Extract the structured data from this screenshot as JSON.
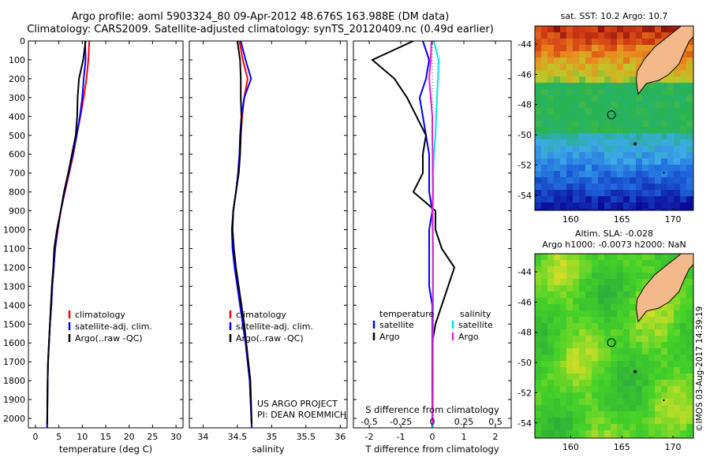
{
  "header": {
    "line1": "Argo profile: aoml 5903324_80 09-Apr-2012 48.676S 163.988E (DM data)",
    "line2": "Climatology: CARS2009. Satellite-adjusted climatology: synTS_20120409.nc (0.49d earlier)"
  },
  "colors": {
    "climatology": "#ff0000",
    "satellite": "#0000ff",
    "argo": "#000000",
    "salinity_satellite": "#00e5ee",
    "salinity_argo": "#e020d0"
  },
  "chart_data": [
    {
      "type": "line",
      "name": "temperature-profile",
      "xlabel": "temperature (deg C)",
      "xlim": [
        -1.5,
        31.5
      ],
      "xticks": [
        0,
        5,
        10,
        15,
        20,
        25,
        30
      ],
      "ylim": [
        0,
        2050
      ],
      "yticks": [
        0,
        100,
        200,
        300,
        400,
        500,
        600,
        700,
        800,
        900,
        1000,
        1100,
        1200,
        1300,
        1400,
        1500,
        1600,
        1700,
        1800,
        1900,
        2000
      ],
      "legend": {
        "position": "lower-center",
        "entries": [
          "climatology",
          "satellite-adj. clim.",
          "Argo(..raw -QC)"
        ]
      },
      "series": [
        {
          "name": "climatology",
          "color_key": "climatology",
          "x": [
            11.5,
            11.3,
            10.9,
            10.3,
            9.6,
            8.8,
            8.1,
            7.2,
            6.3,
            5.4,
            4.8,
            4.2,
            3.9,
            3.6,
            3.4,
            3.1,
            2.9,
            2.7,
            2.6,
            2.5
          ],
          "y": [
            0,
            100,
            200,
            300,
            400,
            500,
            600,
            700,
            800,
            900,
            1000,
            1100,
            1200,
            1300,
            1400,
            1500,
            1600,
            1700,
            1800,
            2050
          ]
        },
        {
          "name": "satellite-adj. clim.",
          "color_key": "satellite",
          "x": [
            10.6,
            10.7,
            10.3,
            10.0,
            9.5,
            8.8,
            8.0,
            7.1,
            6.2,
            5.4,
            4.7,
            4.2,
            3.9,
            3.6,
            3.4,
            3.1,
            2.9,
            2.7,
            2.6,
            2.5
          ],
          "y": [
            0,
            100,
            200,
            300,
            400,
            500,
            600,
            700,
            800,
            900,
            1000,
            1100,
            1200,
            1300,
            1400,
            1500,
            1600,
            1700,
            1800,
            2050
          ]
        },
        {
          "name": "Argo(..raw -QC)",
          "color_key": "argo",
          "x": [
            10.7,
            10.2,
            9.3,
            9.0,
            8.9,
            8.6,
            7.8,
            7.0,
            6.1,
            5.4,
            4.6,
            4.0,
            3.8,
            3.5,
            3.3,
            3.1,
            2.9,
            2.7,
            2.6,
            2.5
          ],
          "y": [
            0,
            100,
            200,
            300,
            400,
            500,
            600,
            700,
            800,
            900,
            1000,
            1100,
            1200,
            1300,
            1400,
            1500,
            1600,
            1700,
            1800,
            2030
          ]
        }
      ]
    },
    {
      "type": "line",
      "name": "salinity-profile",
      "xlabel": "salinity",
      "xlim": [
        33.8,
        36.1
      ],
      "xticks": [
        34,
        34.5,
        35,
        35.5,
        36
      ],
      "ylim": [
        0,
        2050
      ],
      "legend": {
        "position": "lower-center",
        "entries": [
          "climatology",
          "satellite-adj. clim.",
          "Argo(..raw -QC)"
        ]
      },
      "series": [
        {
          "name": "climatology",
          "color_key": "climatology",
          "x": [
            34.53,
            34.58,
            34.65,
            34.6,
            34.57,
            34.55,
            34.54,
            34.52,
            34.48,
            34.44,
            34.42,
            34.43,
            34.46,
            34.5,
            34.54,
            34.58,
            34.62,
            34.65,
            34.68,
            34.71
          ],
          "y": [
            0,
            100,
            200,
            300,
            400,
            500,
            600,
            700,
            800,
            900,
            1000,
            1100,
            1200,
            1300,
            1400,
            1500,
            1600,
            1700,
            1800,
            2050
          ]
        },
        {
          "name": "satellite-adj. clim.",
          "color_key": "satellite",
          "x": [
            34.55,
            34.62,
            34.7,
            34.6,
            34.56,
            34.54,
            34.53,
            34.51,
            34.48,
            34.44,
            34.42,
            34.43,
            34.46,
            34.5,
            34.54,
            34.58,
            34.62,
            34.65,
            34.68,
            34.71
          ],
          "y": [
            0,
            100,
            200,
            300,
            400,
            500,
            600,
            700,
            800,
            900,
            1000,
            1100,
            1200,
            1300,
            1400,
            1500,
            1600,
            1700,
            1800,
            2050
          ]
        },
        {
          "name": "Argo(..raw -QC)",
          "color_key": "argo",
          "x": [
            34.5,
            34.54,
            34.55,
            34.55,
            34.56,
            34.55,
            34.54,
            34.52,
            34.48,
            34.44,
            34.43,
            34.45,
            34.48,
            34.52,
            34.56,
            34.6,
            34.63,
            34.66,
            34.69,
            34.71
          ],
          "y": [
            0,
            100,
            200,
            300,
            400,
            500,
            600,
            700,
            800,
            900,
            1000,
            1100,
            1200,
            1300,
            1400,
            1500,
            1600,
            1700,
            1800,
            2030
          ]
        }
      ]
    },
    {
      "type": "line",
      "name": "difference-profile",
      "xlabel": "T difference from climatology",
      "xlabel_top": "S difference from climatology",
      "xlim": [
        -2.5,
        2.5
      ],
      "xticks": [
        -2,
        -1,
        0,
        1,
        2
      ],
      "xticks_top": [
        -0.5,
        -0.25,
        0,
        0.25,
        0.5
      ],
      "xticks_top_labels": [
        "-0.5",
        "-0.25",
        "0",
        "0.25",
        "0.5"
      ],
      "ylim": [
        0,
        2050
      ],
      "legend": {
        "position": "lower-center",
        "headers": [
          "temperature",
          "salinity"
        ],
        "entries": [
          "satellite",
          "Argo",
          "satellite",
          "Argo"
        ]
      },
      "series": [
        {
          "name": "T satellite",
          "color_key": "satellite",
          "x": [
            -0.3,
            -0.1,
            -0.2,
            -0.4,
            -0.3,
            -0.2,
            -0.1,
            -0.1,
            -0.1,
            0.0,
            -0.1,
            -0.1,
            -0.1,
            -0.1,
            0.0,
            0.0,
            0.0,
            0.0,
            0.0,
            0.0
          ],
          "y": [
            0,
            100,
            200,
            300,
            400,
            500,
            600,
            700,
            800,
            900,
            1000,
            1100,
            1200,
            1300,
            1400,
            1500,
            1600,
            1700,
            1800,
            2050
          ]
        },
        {
          "name": "T Argo",
          "color_key": "argo",
          "x": [
            -0.6,
            -1.9,
            -1.2,
            -0.8,
            -0.5,
            -0.2,
            -0.3,
            -0.3,
            -0.6,
            0.1,
            0.1,
            0.3,
            0.7,
            0.5,
            0.3,
            0.1,
            0.0,
            0.0,
            0.0,
            0.0
          ],
          "y": [
            0,
            100,
            200,
            300,
            400,
            500,
            600,
            700,
            800,
            900,
            1000,
            1100,
            1200,
            1300,
            1400,
            1500,
            1600,
            1700,
            1800,
            2030
          ]
        },
        {
          "name": "S satellite",
          "color_key": "salinity_satellite",
          "x": [
            0.05,
            0.2,
            0.18,
            0.15,
            0.12,
            0.1,
            0.05,
            0.03,
            0.03,
            0.02,
            0.02,
            0.02,
            0.02,
            0.02,
            0.02,
            0.02,
            0.02,
            0.02,
            0.02,
            0.02
          ],
          "y": [
            0,
            100,
            200,
            300,
            400,
            500,
            600,
            700,
            800,
            900,
            1000,
            1100,
            1200,
            1300,
            1400,
            1500,
            1600,
            1700,
            1800,
            2050
          ]
        },
        {
          "name": "S Argo",
          "color_key": "salinity_argo",
          "x": [
            -0.03,
            -0.05,
            -0.1,
            -0.05,
            0.0,
            0.0,
            0.01,
            0.01,
            0.02,
            0.0,
            0.01,
            0.02,
            0.02,
            0.02,
            0.02,
            0.02,
            0.01,
            0.01,
            0.01,
            0.0
          ],
          "y": [
            0,
            100,
            200,
            300,
            400,
            500,
            600,
            700,
            800,
            900,
            1000,
            1100,
            1200,
            1300,
            1400,
            1500,
            1600,
            1700,
            1800,
            2030
          ]
        }
      ]
    },
    {
      "type": "heatmap",
      "name": "sst-map",
      "title": "sat. SST: 10.2  Argo: 10.7",
      "xlim": [
        156.5,
        172
      ],
      "ylim": [
        -55,
        -42.8
      ],
      "xticks": [
        160,
        165,
        170
      ],
      "yticks": [
        -44,
        -46,
        -48,
        -50,
        -52,
        -54
      ],
      "marker": {
        "lon": 163.988,
        "lat": -48.676
      }
    },
    {
      "type": "heatmap",
      "name": "sla-map",
      "title": "Altim. SLA: -0.028",
      "subtitle": "Argo h1000: -0.0073 h2000: NaN",
      "xlim": [
        156.5,
        172
      ],
      "ylim": [
        -55,
        -42.8
      ],
      "xticks": [
        160,
        165,
        170
      ],
      "yticks": [
        -44,
        -46,
        -48,
        -50,
        -52,
        -54
      ],
      "marker": {
        "lon": 163.988,
        "lat": -48.676
      }
    }
  ],
  "annotations": {
    "project": "US ARGO PROJECT",
    "pi": "PI: DEAN ROEMMICH",
    "stamp": "©IMOS 03-Aug-2017 14:39:19"
  }
}
